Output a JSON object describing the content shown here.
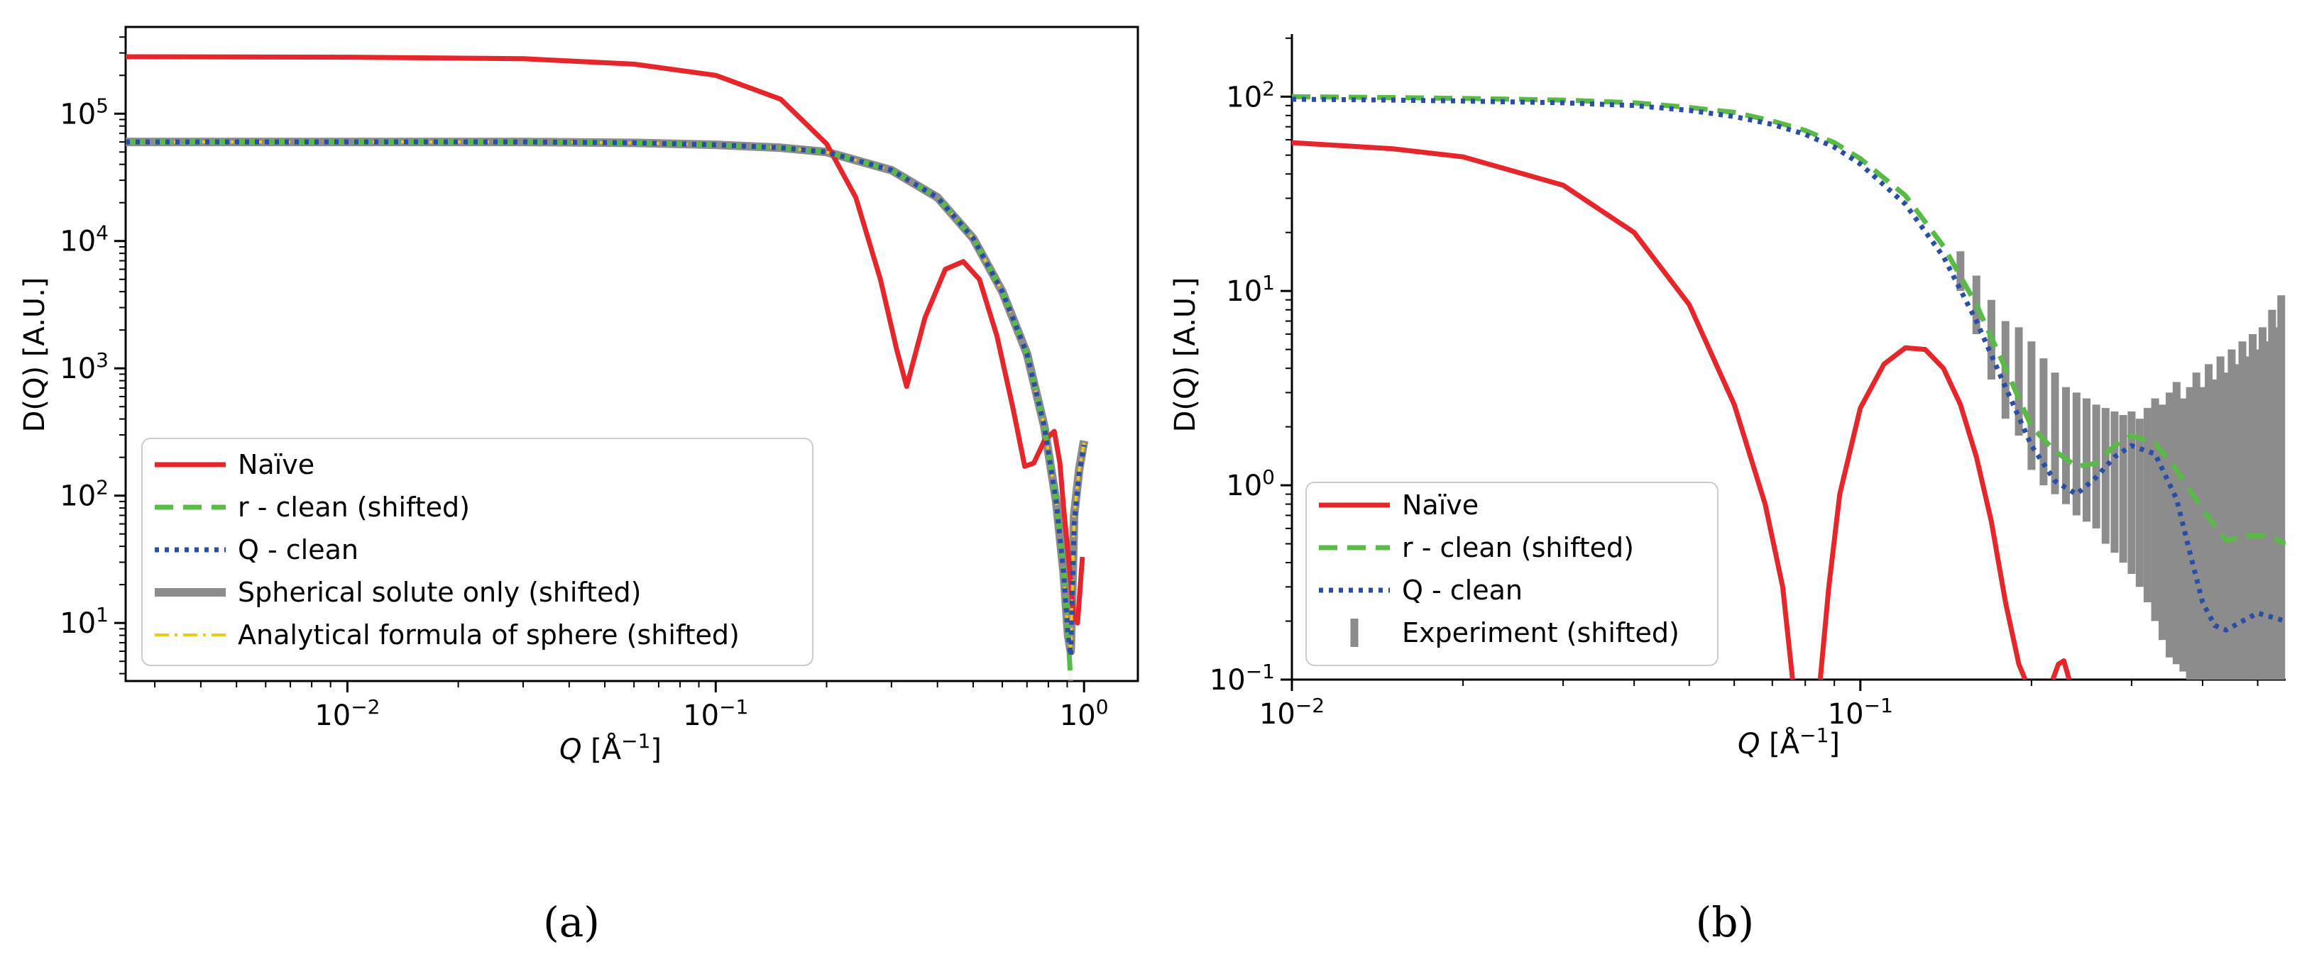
{
  "chart_data": [
    {
      "type": "line",
      "panel_label": "(a)",
      "xlabel_var": "Q",
      "xlabel_unit": "[Å",
      "xlabel_exp": "−1",
      "xlabel_close": "]",
      "ylabel": "D(Q) [A.U.]",
      "xscale": "log",
      "yscale": "log",
      "xlim": [
        0.0025,
        1.4
      ],
      "ylim": [
        3.5,
        480000
      ],
      "xticks": [
        {
          "value": 0.01,
          "base": "10",
          "exp": "−2"
        },
        {
          "value": 0.1,
          "base": "10",
          "exp": "−1"
        },
        {
          "value": 1,
          "base": "10",
          "exp": "0"
        }
      ],
      "yticks": [
        {
          "value": 10,
          "base": "10",
          "exp": "1"
        },
        {
          "value": 100,
          "base": "10",
          "exp": "2"
        },
        {
          "value": 1000,
          "base": "10",
          "exp": "3"
        },
        {
          "value": 10000,
          "base": "10",
          "exp": "4"
        },
        {
          "value": 100000,
          "base": "10",
          "exp": "5"
        }
      ],
      "legend_position": "lower-left",
      "series": [
        {
          "name": "Naïve",
          "color": "#e5262b",
          "style": "solid",
          "x": [
            0.0025,
            0.01,
            0.03,
            0.06,
            0.1,
            0.15,
            0.2,
            0.24,
            0.28,
            0.31,
            0.33,
            0.37,
            0.42,
            0.47,
            0.52,
            0.58,
            0.64,
            0.69,
            0.73,
            0.78,
            0.83,
            0.86,
            0.88,
            0.91,
            0.935,
            0.96,
            0.99
          ],
          "y": [
            280000,
            278000,
            270000,
            245000,
            200000,
            130000,
            58000,
            22000,
            5000,
            1400,
            720,
            2500,
            6000,
            6900,
            5000,
            1800,
            500,
            170,
            180,
            270,
            320,
            180,
            80,
            30,
            12,
            10,
            33
          ]
        },
        {
          "name": "r - clean (shifted)",
          "color": "#5aba47",
          "style": "dashed",
          "x": [
            0.0025,
            0.01,
            0.03,
            0.06,
            0.1,
            0.15,
            0.2,
            0.3,
            0.4,
            0.5,
            0.6,
            0.7,
            0.78,
            0.84,
            0.88,
            0.905,
            0.92
          ],
          "y": [
            60000,
            60000,
            60000,
            59000,
            57000,
            54000,
            50000,
            36000,
            22000,
            10500,
            4000,
            1300,
            350,
            90,
            25,
            8,
            3.5
          ]
        },
        {
          "name": "Q - clean",
          "color": "#2a4ea6",
          "style": "dotted",
          "x": [
            0.0025,
            0.01,
            0.03,
            0.06,
            0.1,
            0.15,
            0.2,
            0.3,
            0.4,
            0.5,
            0.6,
            0.7,
            0.78,
            0.84,
            0.88,
            0.905,
            0.92,
            0.94,
            0.97,
            1.0
          ],
          "y": [
            60000,
            60000,
            60000,
            59000,
            57000,
            54000,
            50000,
            36000,
            22000,
            10500,
            4000,
            1300,
            350,
            90,
            25,
            8,
            5.5,
            60,
            150,
            250
          ]
        },
        {
          "name": "Spherical solute only (shifted)",
          "color": "#8c8c8c",
          "style": "solid-thick",
          "x": [
            0.0025,
            0.01,
            0.03,
            0.06,
            0.1,
            0.15,
            0.2,
            0.3,
            0.4,
            0.5,
            0.6,
            0.7,
            0.78,
            0.84,
            0.88,
            0.905,
            0.92,
            0.94,
            0.97,
            1.0
          ],
          "y": [
            60000,
            60000,
            60000,
            59000,
            57000,
            54000,
            50000,
            36000,
            22000,
            10500,
            4000,
            1300,
            350,
            90,
            25,
            8,
            6,
            70,
            160,
            270
          ]
        },
        {
          "name": "Analytical formula of sphere (shifted)",
          "color": "#f2c818",
          "style": "dashdot",
          "x": [
            0.0025,
            0.01,
            0.03,
            0.06,
            0.1,
            0.15,
            0.2,
            0.3,
            0.4,
            0.5,
            0.6,
            0.7,
            0.78,
            0.84,
            0.88,
            0.905,
            0.92,
            0.94,
            0.97,
            1.0
          ],
          "y": [
            60000,
            60000,
            60000,
            59000,
            57000,
            54000,
            50000,
            36000,
            22000,
            10500,
            4000,
            1300,
            350,
            90,
            25,
            8,
            6,
            70,
            160,
            260
          ]
        }
      ]
    },
    {
      "type": "line",
      "panel_label": "(b)",
      "xlabel_var": "Q",
      "xlabel_unit": "[Å",
      "xlabel_exp": "−1",
      "xlabel_close": "]",
      "ylabel": "D(Q) [A.U.]",
      "xscale": "log",
      "yscale": "log",
      "xlim": [
        0.01,
        0.56
      ],
      "ylim": [
        0.1,
        210
      ],
      "xticks": [
        {
          "value": 0.01,
          "base": "10",
          "exp": "−2"
        },
        {
          "value": 0.1,
          "base": "10",
          "exp": "−1"
        }
      ],
      "yticks": [
        {
          "value": 0.1,
          "base": "10",
          "exp": "−1"
        },
        {
          "value": 1,
          "base": "10",
          "exp": "0"
        },
        {
          "value": 10,
          "base": "10",
          "exp": "1"
        },
        {
          "value": 100,
          "base": "10",
          "exp": "2"
        }
      ],
      "legend_position": "lower-left",
      "series": [
        {
          "name": "Naïve",
          "color": "#e5262b",
          "style": "solid",
          "x": [
            0.01,
            0.015,
            0.02,
            0.03,
            0.04,
            0.05,
            0.06,
            0.068,
            0.073,
            0.076
          ],
          "y": [
            58,
            54,
            49,
            35,
            20,
            8.5,
            2.6,
            0.8,
            0.3,
            0.1
          ]
        },
        {
          "name": "Naïve",
          "color": "#e5262b",
          "style": "solid",
          "legend": false,
          "x": [
            0.085,
            0.088,
            0.092,
            0.1,
            0.11,
            0.12,
            0.13,
            0.14,
            0.15,
            0.16,
            0.17,
            0.18,
            0.19,
            0.195
          ],
          "y": [
            0.1,
            0.3,
            0.9,
            2.5,
            4.2,
            5.1,
            5.0,
            4.0,
            2.6,
            1.4,
            0.65,
            0.25,
            0.12,
            0.1
          ]
        },
        {
          "name": "Naïve",
          "color": "#e5262b",
          "style": "solid",
          "legend": false,
          "x": [
            0.218,
            0.223,
            0.228,
            0.233
          ],
          "y": [
            0.1,
            0.12,
            0.125,
            0.1
          ]
        },
        {
          "name": "r - clean (shifted)",
          "color": "#5aba47",
          "style": "dashed",
          "x": [
            0.01,
            0.015,
            0.02,
            0.03,
            0.04,
            0.05,
            0.06,
            0.07,
            0.08,
            0.09,
            0.1,
            0.12,
            0.14,
            0.16,
            0.18,
            0.2,
            0.22,
            0.24,
            0.26,
            0.28,
            0.3,
            0.33,
            0.36,
            0.4,
            0.44,
            0.48,
            0.52,
            0.56
          ],
          "y": [
            100,
            99,
            98,
            96,
            93,
            88,
            83,
            75,
            67,
            58,
            48,
            31,
            17,
            8.5,
            4.0,
            2.0,
            1.5,
            1.25,
            1.3,
            1.6,
            1.8,
            1.65,
            1.2,
            0.75,
            0.52,
            0.55,
            0.55,
            0.5
          ]
        },
        {
          "name": "Q - clean",
          "color": "#2a4ea6",
          "style": "dotted",
          "x": [
            0.01,
            0.015,
            0.02,
            0.03,
            0.04,
            0.05,
            0.06,
            0.07,
            0.08,
            0.09,
            0.1,
            0.12,
            0.14,
            0.16,
            0.18,
            0.2,
            0.22,
            0.24,
            0.26,
            0.28,
            0.3,
            0.33,
            0.36,
            0.38,
            0.4,
            0.42,
            0.44,
            0.47,
            0.5,
            0.56
          ],
          "y": [
            97,
            96,
            95,
            93,
            90,
            85,
            79,
            72,
            64,
            55,
            45,
            28,
            15,
            7.0,
            3.2,
            1.6,
            1.05,
            0.9,
            1.1,
            1.4,
            1.6,
            1.45,
            0.85,
            0.45,
            0.25,
            0.19,
            0.18,
            0.2,
            0.22,
            0.2
          ]
        },
        {
          "name": "Experiment (shifted)",
          "color": "#8c8c8c",
          "style": "errorbar",
          "x": [
            0.15,
            0.16,
            0.17,
            0.18,
            0.19,
            0.2,
            0.21,
            0.22,
            0.23,
            0.24,
            0.25,
            0.26,
            0.27,
            0.28,
            0.29,
            0.3,
            0.31,
            0.32,
            0.33,
            0.34,
            0.35,
            0.36,
            0.37,
            0.38,
            0.39,
            0.4,
            0.41,
            0.42,
            0.43,
            0.44,
            0.45,
            0.46,
            0.47,
            0.48,
            0.49,
            0.5,
            0.51,
            0.52,
            0.53,
            0.54,
            0.55
          ],
          "ylow": [
            10,
            6,
            3.5,
            2.2,
            1.8,
            1.2,
            1.0,
            0.9,
            0.8,
            0.7,
            0.65,
            0.6,
            0.5,
            0.45,
            0.4,
            0.35,
            0.3,
            0.25,
            0.2,
            0.16,
            0.13,
            0.12,
            0.11,
            0.1,
            0.1,
            0.1,
            0.1,
            0.1,
            0.1,
            0.1,
            0.1,
            0.1,
            0.1,
            0.1,
            0.1,
            0.1,
            0.1,
            0.1,
            0.1,
            0.1,
            0.1
          ],
          "yhigh": [
            16,
            12,
            9,
            7,
            6.5,
            5.5,
            4.5,
            3.8,
            3.2,
            3.0,
            2.8,
            2.6,
            2.5,
            2.4,
            2.3,
            2.4,
            2.2,
            2.5,
            2.8,
            2.6,
            3.0,
            3.4,
            2.8,
            3.2,
            3.8,
            3.2,
            4.2,
            3.5,
            4.6,
            3.8,
            5.0,
            4.2,
            5.5,
            4.6,
            6.0,
            5.0,
            6.5,
            5.5,
            8.0,
            6.5,
            9.5
          ]
        }
      ]
    }
  ]
}
